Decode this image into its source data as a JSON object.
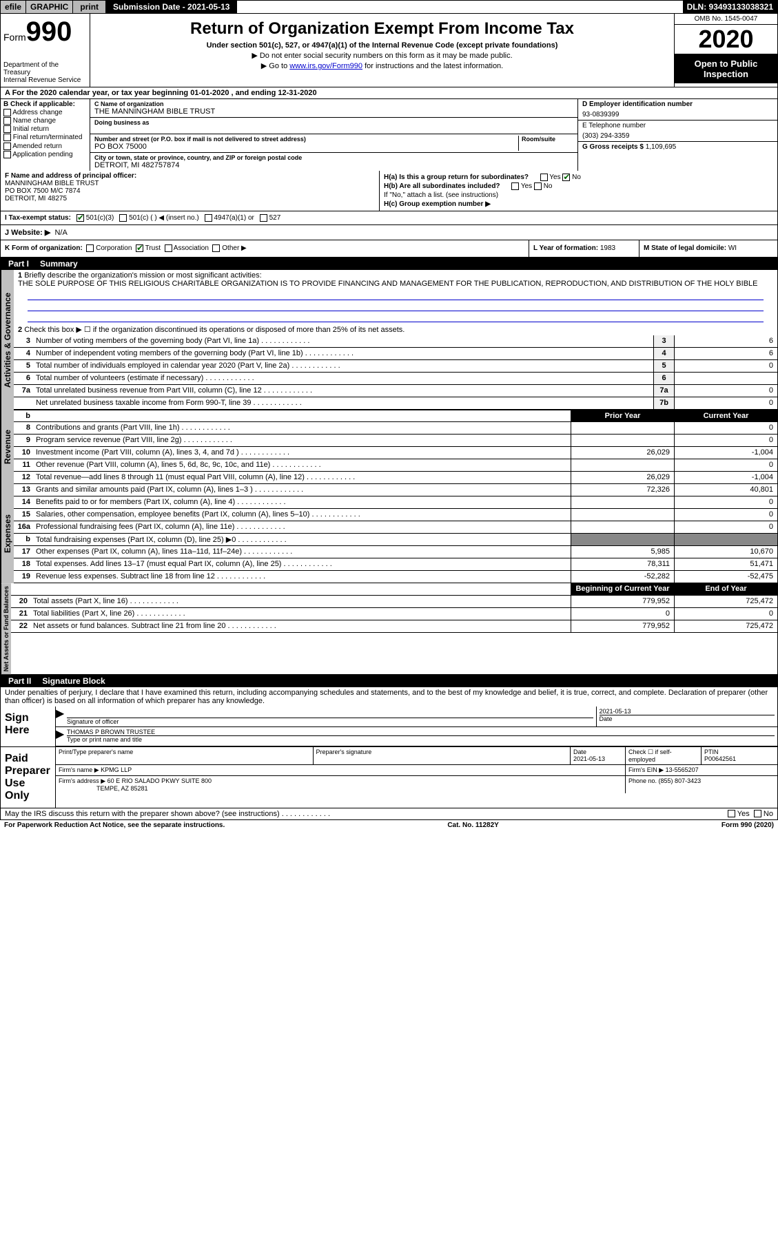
{
  "top": {
    "efile": "efile",
    "graphic": "GRAPHIC",
    "print": "print",
    "submission_label": "Submission Date - 2021-05-13",
    "dln": "DLN: 93493133038321"
  },
  "header": {
    "form_prefix": "Form",
    "form_num": "990",
    "dept1": "Department of the Treasury",
    "dept2": "Internal Revenue Service",
    "title": "Return of Organization Exempt From Income Tax",
    "subtitle": "Under section 501(c), 527, or 4947(a)(1) of the Internal Revenue Code (except private foundations)",
    "note1": "▶ Do not enter social security numbers on this form as it may be made public.",
    "note2_pre": "▶ Go to ",
    "note2_link": "www.irs.gov/Form990",
    "note2_post": " for instructions and the latest information.",
    "omb": "OMB No. 1545-0047",
    "year": "2020",
    "open_public": "Open to Public Inspection"
  },
  "rowA": "A For the 2020 calendar year, or tax year beginning 01-01-2020    , and ending 12-31-2020",
  "colB": {
    "label": "B Check if applicable:",
    "opts": [
      "Address change",
      "Name change",
      "Initial return",
      "Final return/terminated",
      "Amended return",
      "Application pending"
    ]
  },
  "colC": {
    "name_label": "C Name of organization",
    "name": "THE MANNINGHAM BIBLE TRUST",
    "dba_label": "Doing business as",
    "addr_label": "Number and street (or P.O. box if mail is not delivered to street address)",
    "room_label": "Room/suite",
    "addr": "PO BOX 75000",
    "city_label": "City or town, state or province, country, and ZIP or foreign postal code",
    "city": "DETROIT, MI  482757874"
  },
  "colD": {
    "ein_label": "D Employer identification number",
    "ein": "93-0839399",
    "phone_label": "E Telephone number",
    "phone": "(303) 294-3359",
    "receipts_label": "G Gross receipts $ ",
    "receipts": "1,109,695"
  },
  "officer": {
    "label": "F  Name and address of principal officer:",
    "l1": "MANNINGHAM BIBLE TRUST",
    "l2": "PO BOX 7500 M/C 7874",
    "l3": "DETROIT, MI  48275"
  },
  "hsec": {
    "ha": "H(a)  Is this a group return for subordinates?",
    "ha_no": "No",
    "hb": "H(b)  Are all subordinates included?",
    "hb_note": "If \"No,\" attach a list. (see instructions)",
    "hc": "H(c)  Group exemption number ▶"
  },
  "taxI": {
    "label": "I  Tax-exempt status:",
    "o1": "501(c)(3)",
    "o2": "501(c) (    ) ◀ (insert no.)",
    "o3": "4947(a)(1) or",
    "o4": "527"
  },
  "website": {
    "label": "J  Website: ▶",
    "val": "N/A"
  },
  "rowK": {
    "k": "K Form of organization:",
    "opts": [
      "Corporation",
      "Trust",
      "Association",
      "Other ▶"
    ],
    "checked": 1,
    "l_label": "L Year of formation: ",
    "l_val": "1983",
    "m_label": "M State of legal domicile: ",
    "m_val": "WI"
  },
  "part1": {
    "num": "Part I",
    "title": "Summary",
    "side1": "Activities & Governance",
    "side2": "Revenue",
    "side3": "Expenses",
    "side4": "Net Assets or Fund Balances",
    "l1": "Briefly describe the organization's mission or most significant activities:",
    "l1_text": "THE SOLE PURPOSE OF THIS RELIGIOUS CHARITABLE ORGANIZATION IS TO PROVIDE FINANCING AND MANAGEMENT FOR THE PUBLICATION, REPRODUCTION, AND DISTRIBUTION OF THE HOLY BIBLE",
    "l2": "Check this box ▶ ☐  if the organization discontinued its operations or disposed of more than 25% of its net assets.",
    "lines_gov": [
      {
        "n": "3",
        "d": "Number of voting members of the governing body (Part VI, line 1a)",
        "b": "3",
        "v": "6"
      },
      {
        "n": "4",
        "d": "Number of independent voting members of the governing body (Part VI, line 1b)",
        "b": "4",
        "v": "6"
      },
      {
        "n": "5",
        "d": "Total number of individuals employed in calendar year 2020 (Part V, line 2a)",
        "b": "5",
        "v": "0"
      },
      {
        "n": "6",
        "d": "Total number of volunteers (estimate if necessary)",
        "b": "6",
        "v": ""
      },
      {
        "n": "7a",
        "d": "Total unrelated business revenue from Part VIII, column (C), line 12",
        "b": "7a",
        "v": "0"
      },
      {
        "n": "",
        "d": "Net unrelated business taxable income from Form 990-T, line 39",
        "b": "7b",
        "v": "0"
      }
    ],
    "header_prior": "Prior Year",
    "header_curr": "Current Year",
    "lines_rev": [
      {
        "n": "8",
        "d": "Contributions and grants (Part VIII, line 1h)",
        "p": "",
        "c": "0"
      },
      {
        "n": "9",
        "d": "Program service revenue (Part VIII, line 2g)",
        "p": "",
        "c": "0"
      },
      {
        "n": "10",
        "d": "Investment income (Part VIII, column (A), lines 3, 4, and 7d )",
        "p": "26,029",
        "c": "-1,004"
      },
      {
        "n": "11",
        "d": "Other revenue (Part VIII, column (A), lines 5, 6d, 8c, 9c, 10c, and 11e)",
        "p": "",
        "c": "0"
      },
      {
        "n": "12",
        "d": "Total revenue—add lines 8 through 11 (must equal Part VIII, column (A), line 12)",
        "p": "26,029",
        "c": "-1,004"
      }
    ],
    "lines_exp": [
      {
        "n": "13",
        "d": "Grants and similar amounts paid (Part IX, column (A), lines 1–3 )",
        "p": "72,326",
        "c": "40,801"
      },
      {
        "n": "14",
        "d": "Benefits paid to or for members (Part IX, column (A), line 4)",
        "p": "",
        "c": "0"
      },
      {
        "n": "15",
        "d": "Salaries, other compensation, employee benefits (Part IX, column (A), lines 5–10)",
        "p": "",
        "c": "0"
      },
      {
        "n": "16a",
        "d": "Professional fundraising fees (Part IX, column (A), line 11e)",
        "p": "",
        "c": "0"
      },
      {
        "n": "b",
        "d": "Total fundraising expenses (Part IX, column (D), line 25) ▶0",
        "p": "grey",
        "c": "grey"
      },
      {
        "n": "17",
        "d": "Other expenses (Part IX, column (A), lines 11a–11d, 11f–24e)",
        "p": "5,985",
        "c": "10,670"
      },
      {
        "n": "18",
        "d": "Total expenses. Add lines 13–17 (must equal Part IX, column (A), line 25)",
        "p": "78,311",
        "c": "51,471"
      },
      {
        "n": "19",
        "d": "Revenue less expenses. Subtract line 18 from line 12",
        "p": "-52,282",
        "c": "-52,475"
      }
    ],
    "header_beg": "Beginning of Current Year",
    "header_end": "End of Year",
    "lines_net": [
      {
        "n": "20",
        "d": "Total assets (Part X, line 16)",
        "p": "779,952",
        "c": "725,472"
      },
      {
        "n": "21",
        "d": "Total liabilities (Part X, line 26)",
        "p": "0",
        "c": "0"
      },
      {
        "n": "22",
        "d": "Net assets or fund balances. Subtract line 21 from line 20",
        "p": "779,952",
        "c": "725,472"
      }
    ]
  },
  "part2": {
    "num": "Part II",
    "title": "Signature Block",
    "decl": "Under penalties of perjury, I declare that I have examined this return, including accompanying schedules and statements, and to the best of my knowledge and belief, it is true, correct, and complete. Declaration of preparer (other than officer) is based on all information of which preparer has any knowledge.",
    "sign_here": "Sign Here",
    "sig_officer": "Signature of officer",
    "date": "Date",
    "date_val": "2021-05-13",
    "name_title": "THOMAS P BROWN  TRUSTEE",
    "name_label": "Type or print name and title",
    "paid": "Paid Preparer Use Only",
    "prep_name": "Print/Type preparer's name",
    "prep_sig": "Preparer's signature",
    "prep_date": "Date",
    "prep_date_val": "2021-05-13",
    "check_self": "Check ☐ if self-employed",
    "ptin_label": "PTIN",
    "ptin": "P00642561",
    "firm_name_label": "Firm's name    ▶ ",
    "firm_name": "KPMG LLP",
    "firm_ein_label": "Firm's EIN ▶ ",
    "firm_ein": "13-5565207",
    "firm_addr_label": "Firm's address ▶ ",
    "firm_addr1": "60 E RIO SALADO PKWY SUITE 800",
    "firm_addr2": "TEMPE, AZ  85281",
    "firm_phone_label": "Phone no. ",
    "firm_phone": "(855) 807-3423",
    "discuss": "May the IRS discuss this return with the preparer shown above? (see instructions)"
  },
  "footer": {
    "left": "For Paperwork Reduction Act Notice, see the separate instructions.",
    "mid": "Cat. No. 11282Y",
    "right": "Form 990 (2020)"
  }
}
